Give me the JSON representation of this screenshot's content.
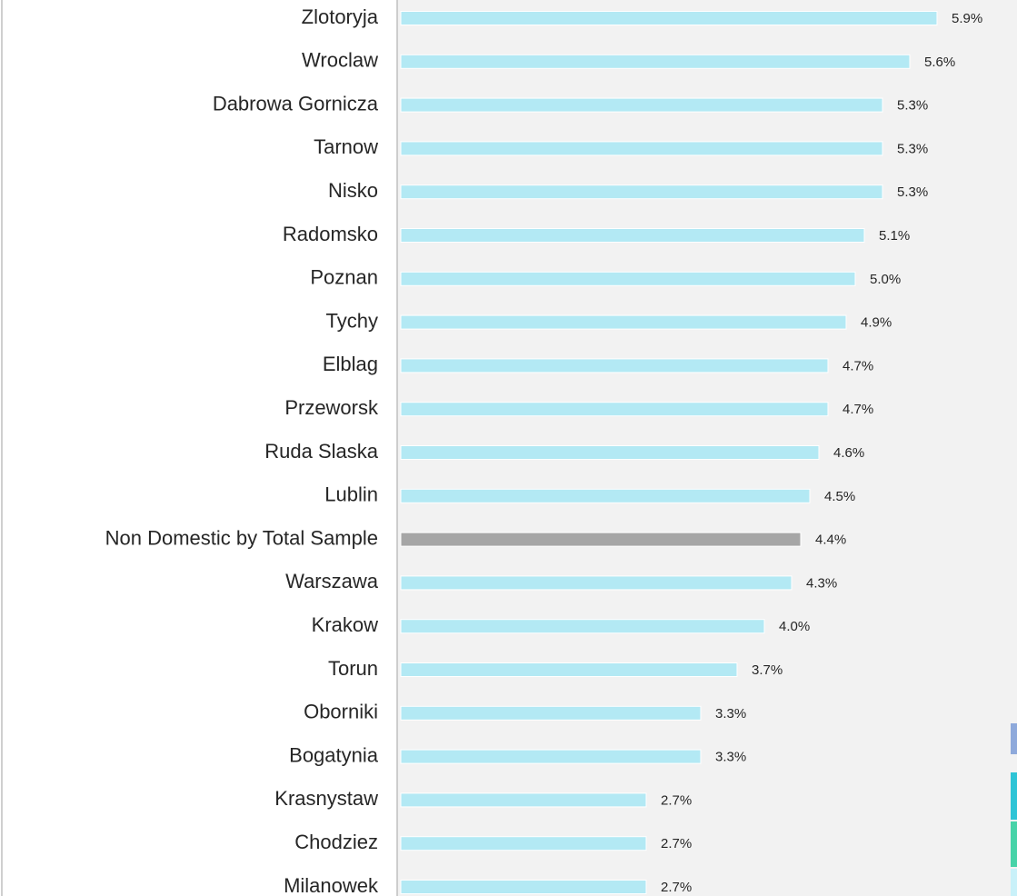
{
  "chart_data": {
    "type": "bar",
    "orientation": "horizontal",
    "categories": [
      "Zlotoryja",
      "Wroclaw",
      "Dabrowa Gornicza",
      "Tarnow",
      "Nisko",
      "Radomsko",
      "Poznan",
      "Tychy",
      "Elblag",
      "Przeworsk",
      "Ruda Slaska",
      "Lublin",
      "Non Domestic by Total Sample",
      "Warszawa",
      "Krakow",
      "Torun",
      "Oborniki",
      "Bogatynia",
      "Krasnystaw",
      "Chodziez",
      "Milanowek"
    ],
    "values": [
      5.9,
      5.6,
      5.3,
      5.3,
      5.3,
      5.1,
      5.0,
      4.9,
      4.7,
      4.7,
      4.6,
      4.5,
      4.4,
      4.3,
      4.0,
      3.7,
      3.3,
      3.3,
      2.7,
      2.7,
      2.7
    ],
    "value_labels": [
      "5.9%",
      "5.6%",
      "5.3%",
      "5.3%",
      "5.3%",
      "5.1%",
      "5.0%",
      "4.9%",
      "4.7%",
      "4.7%",
      "4.6%",
      "4.5%",
      "4.4%",
      "4.3%",
      "4.0%",
      "3.7%",
      "3.3%",
      "3.3%",
      "2.7%",
      "2.7%",
      "2.7%"
    ],
    "colors": [
      "#b3e9f4",
      "#b3e9f4",
      "#b3e9f4",
      "#b3e9f4",
      "#b3e9f4",
      "#b3e9f4",
      "#b3e9f4",
      "#b3e9f4",
      "#b3e9f4",
      "#b3e9f4",
      "#b3e9f4",
      "#b3e9f4",
      "#a6a6a6",
      "#b3e9f4",
      "#b3e9f4",
      "#b3e9f4",
      "#b3e9f4",
      "#b3e9f4",
      "#b3e9f4",
      "#b3e9f4",
      "#b3e9f4"
    ],
    "xlim": [
      0,
      6.78
    ]
  }
}
